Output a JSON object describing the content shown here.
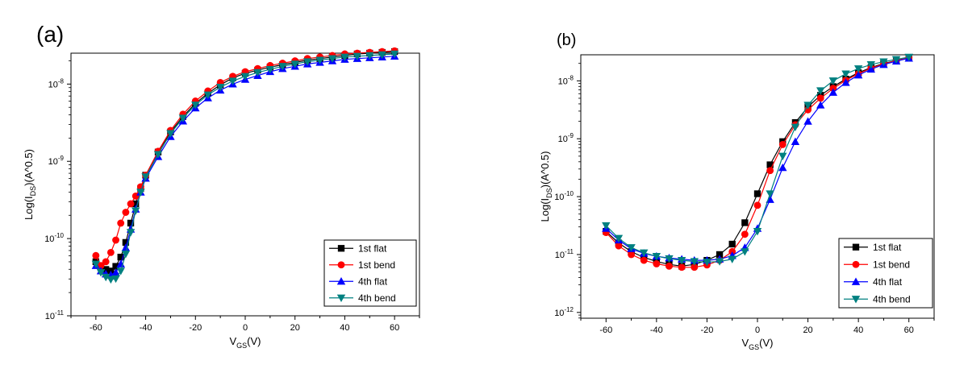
{
  "figure": {
    "background": "#ffffff"
  },
  "chart_data": [
    {
      "type": "scatter",
      "panel_label": "(a)",
      "xlabel": "V",
      "xlabel_sub": "GS",
      "xlabel_unit": "(V)",
      "ylabel_pre": "Log(I",
      "ylabel_sub": "DS",
      "ylabel_post": ")(A^0.5)",
      "xlim": [
        -70,
        70
      ],
      "ylim_log": [
        -11,
        -7.6
      ],
      "xticks": [
        -60,
        -40,
        -20,
        0,
        20,
        40,
        60
      ],
      "xtick_labels": [
        "-60",
        "-40",
        "-20",
        "0",
        "20",
        "40",
        "60"
      ],
      "yticks_exp": [
        -11,
        -10,
        -9,
        -8
      ],
      "ytick_labels": [
        {
          "base": "10",
          "exp": "-11"
        },
        {
          "base": "10",
          "exp": "-10"
        },
        {
          "base": "10",
          "exp": "-9"
        },
        {
          "base": "10",
          "exp": "-8"
        }
      ],
      "legend_position": "bottom-right",
      "series": [
        {
          "name": "1st  flat",
          "color": "#000000",
          "marker": "square",
          "points": [
            [
              -60,
              -10.3
            ],
            [
              -58,
              -10.36
            ],
            [
              -56,
              -10.4
            ],
            [
              -54,
              -10.42
            ],
            [
              -52,
              -10.36
            ],
            [
              -50,
              -10.24
            ],
            [
              -48,
              -10.05
            ],
            [
              -46,
              -9.8
            ],
            [
              -44,
              -9.55
            ],
            [
              -42,
              -9.35
            ],
            [
              -40,
              -9.18
            ],
            [
              -35,
              -8.88
            ],
            [
              -30,
              -8.62
            ],
            [
              -25,
              -8.42
            ],
            [
              -20,
              -8.25
            ],
            [
              -15,
              -8.12
            ],
            [
              -10,
              -8.01
            ],
            [
              -5,
              -7.92
            ],
            [
              0,
              -7.86
            ],
            [
              5,
              -7.82
            ],
            [
              10,
              -7.78
            ],
            [
              15,
              -7.75
            ],
            [
              20,
              -7.72
            ],
            [
              25,
              -7.69
            ],
            [
              30,
              -7.67
            ],
            [
              35,
              -7.65
            ],
            [
              40,
              -7.63
            ],
            [
              45,
              -7.61
            ],
            [
              50,
              -7.6
            ],
            [
              55,
              -7.59
            ],
            [
              60,
              -7.58
            ]
          ]
        },
        {
          "name": "1st bend",
          "color": "#ff0000",
          "marker": "circle",
          "points": [
            [
              -60,
              -10.22
            ],
            [
              -58,
              -10.35
            ],
            [
              -56,
              -10.3
            ],
            [
              -54,
              -10.18
            ],
            [
              -52,
              -10.02
            ],
            [
              -50,
              -9.8
            ],
            [
              -48,
              -9.66
            ],
            [
              -46,
              -9.55
            ],
            [
              -44,
              -9.45
            ],
            [
              -42,
              -9.33
            ],
            [
              -40,
              -9.18
            ],
            [
              -35,
              -8.87
            ],
            [
              -30,
              -8.6
            ],
            [
              -25,
              -8.39
            ],
            [
              -20,
              -8.22
            ],
            [
              -15,
              -8.09
            ],
            [
              -10,
              -7.98
            ],
            [
              -5,
              -7.9
            ],
            [
              0,
              -7.84
            ],
            [
              5,
              -7.8
            ],
            [
              10,
              -7.76
            ],
            [
              15,
              -7.73
            ],
            [
              20,
              -7.7
            ],
            [
              25,
              -7.67
            ],
            [
              30,
              -7.65
            ],
            [
              35,
              -7.63
            ],
            [
              40,
              -7.61
            ],
            [
              45,
              -7.6
            ],
            [
              50,
              -7.59
            ],
            [
              55,
              -7.58
            ],
            [
              60,
              -7.57
            ]
          ]
        },
        {
          "name": "4th  flat",
          "color": "#0000ff",
          "marker": "triangle-up",
          "points": [
            [
              -60,
              -10.35
            ],
            [
              -58,
              -10.42
            ],
            [
              -56,
              -10.46
            ],
            [
              -54,
              -10.47
            ],
            [
              -52,
              -10.44
            ],
            [
              -50,
              -10.33
            ],
            [
              -48,
              -10.12
            ],
            [
              -46,
              -9.88
            ],
            [
              -44,
              -9.62
            ],
            [
              -42,
              -9.4
            ],
            [
              -40,
              -9.22
            ],
            [
              -35,
              -8.94
            ],
            [
              -30,
              -8.68
            ],
            [
              -25,
              -8.48
            ],
            [
              -20,
              -8.31
            ],
            [
              -15,
              -8.18
            ],
            [
              -10,
              -8.08
            ],
            [
              -5,
              -8.0
            ],
            [
              0,
              -7.94
            ],
            [
              5,
              -7.89
            ],
            [
              10,
              -7.84
            ],
            [
              15,
              -7.8
            ],
            [
              20,
              -7.77
            ],
            [
              25,
              -7.74
            ],
            [
              30,
              -7.72
            ],
            [
              35,
              -7.7
            ],
            [
              40,
              -7.68
            ],
            [
              45,
              -7.67
            ],
            [
              50,
              -7.66
            ],
            [
              55,
              -7.65
            ],
            [
              60,
              -7.64
            ]
          ]
        },
        {
          "name": "4th bend",
          "color": "#008080",
          "marker": "triangle-down",
          "points": [
            [
              -60,
              -10.33
            ],
            [
              -58,
              -10.44
            ],
            [
              -56,
              -10.5
            ],
            [
              -54,
              -10.53
            ],
            [
              -52,
              -10.52
            ],
            [
              -50,
              -10.42
            ],
            [
              -48,
              -10.2
            ],
            [
              -46,
              -9.92
            ],
            [
              -44,
              -9.64
            ],
            [
              -42,
              -9.4
            ],
            [
              -40,
              -9.2
            ],
            [
              -35,
              -8.91
            ],
            [
              -30,
              -8.64
            ],
            [
              -25,
              -8.44
            ],
            [
              -20,
              -8.27
            ],
            [
              -15,
              -8.14
            ],
            [
              -10,
              -8.04
            ],
            [
              -5,
              -7.96
            ],
            [
              0,
              -7.9
            ],
            [
              5,
              -7.85
            ],
            [
              10,
              -7.81
            ],
            [
              15,
              -7.77
            ],
            [
              20,
              -7.74
            ],
            [
              25,
              -7.71
            ],
            [
              30,
              -7.69
            ],
            [
              35,
              -7.67
            ],
            [
              40,
              -7.65
            ],
            [
              45,
              -7.64
            ],
            [
              50,
              -7.63
            ],
            [
              55,
              -7.62
            ],
            [
              60,
              -7.61
            ]
          ]
        }
      ]
    },
    {
      "type": "scatter",
      "panel_label": "(b)",
      "xlabel": "V",
      "xlabel_sub": "GS",
      "xlabel_unit": "(V)",
      "ylabel_pre": "Log(I",
      "ylabel_sub": "DS",
      "ylabel_post": ")(A^0.5)",
      "xlim": [
        -70,
        70
      ],
      "ylim_log": [
        -12.1,
        -7.55
      ],
      "xticks": [
        -60,
        -40,
        -20,
        0,
        20,
        40,
        60
      ],
      "xtick_labels": [
        "-60",
        "-40",
        "-20",
        "0",
        "20",
        "40",
        "60"
      ],
      "yticks_exp": [
        -12,
        -11,
        -10,
        -9,
        -8
      ],
      "ytick_labels": [
        {
          "base": "10",
          "exp": "-12"
        },
        {
          "base": "10",
          "exp": "-11"
        },
        {
          "base": "10",
          "exp": "-10"
        },
        {
          "base": "10",
          "exp": "-9"
        },
        {
          "base": "10",
          "exp": "-8"
        }
      ],
      "legend_position": "bottom-right",
      "series": [
        {
          "name": "1st  flat",
          "color": "#000000",
          "marker": "square",
          "points": [
            [
              -60,
              -10.6
            ],
            [
              -55,
              -10.8
            ],
            [
              -50,
              -10.95
            ],
            [
              -45,
              -11.05
            ],
            [
              -40,
              -11.12
            ],
            [
              -35,
              -11.17
            ],
            [
              -30,
              -11.2
            ],
            [
              -25,
              -11.17
            ],
            [
              -20,
              -11.1
            ],
            [
              -15,
              -11.0
            ],
            [
              -10,
              -10.82
            ],
            [
              -5,
              -10.45
            ],
            [
              0,
              -9.95
            ],
            [
              5,
              -9.45
            ],
            [
              10,
              -9.05
            ],
            [
              15,
              -8.72
            ],
            [
              20,
              -8.45
            ],
            [
              25,
              -8.25
            ],
            [
              30,
              -8.1
            ],
            [
              35,
              -7.97
            ],
            [
              40,
              -7.86
            ],
            [
              45,
              -7.77
            ],
            [
              50,
              -7.7
            ],
            [
              55,
              -7.65
            ],
            [
              60,
              -7.6
            ]
          ]
        },
        {
          "name": "1st bend",
          "color": "#ff0000",
          "marker": "circle",
          "points": [
            [
              -60,
              -10.62
            ],
            [
              -55,
              -10.85
            ],
            [
              -50,
              -11.0
            ],
            [
              -45,
              -11.1
            ],
            [
              -40,
              -11.16
            ],
            [
              -35,
              -11.2
            ],
            [
              -30,
              -11.22
            ],
            [
              -25,
              -11.22
            ],
            [
              -20,
              -11.18
            ],
            [
              -15,
              -11.1
            ],
            [
              -10,
              -10.95
            ],
            [
              -5,
              -10.65
            ],
            [
              0,
              -10.15
            ],
            [
              5,
              -9.55
            ],
            [
              10,
              -9.1
            ],
            [
              15,
              -8.76
            ],
            [
              20,
              -8.5
            ],
            [
              25,
              -8.3
            ],
            [
              30,
              -8.13
            ],
            [
              35,
              -7.99
            ],
            [
              40,
              -7.88
            ],
            [
              45,
              -7.78
            ],
            [
              50,
              -7.71
            ],
            [
              55,
              -7.65
            ],
            [
              60,
              -7.6
            ]
          ]
        },
        {
          "name": "4th  flat",
          "color": "#0000ff",
          "marker": "triangle-up",
          "points": [
            [
              -60,
              -10.55
            ],
            [
              -55,
              -10.75
            ],
            [
              -50,
              -10.9
            ],
            [
              -45,
              -10.98
            ],
            [
              -40,
              -11.03
            ],
            [
              -35,
              -11.06
            ],
            [
              -30,
              -11.08
            ],
            [
              -25,
              -11.1
            ],
            [
              -20,
              -11.1
            ],
            [
              -15,
              -11.08
            ],
            [
              -10,
              -11.02
            ],
            [
              -5,
              -10.88
            ],
            [
              0,
              -10.55
            ],
            [
              5,
              -10.05
            ],
            [
              10,
              -9.5
            ],
            [
              15,
              -9.05
            ],
            [
              20,
              -8.7
            ],
            [
              25,
              -8.42
            ],
            [
              30,
              -8.2
            ],
            [
              35,
              -8.03
            ],
            [
              40,
              -7.9
            ],
            [
              45,
              -7.8
            ],
            [
              50,
              -7.72
            ],
            [
              55,
              -7.66
            ],
            [
              60,
              -7.61
            ]
          ]
        },
        {
          "name": "4th bend",
          "color": "#008080",
          "marker": "triangle-down",
          "points": [
            [
              -60,
              -10.5
            ],
            [
              -55,
              -10.72
            ],
            [
              -50,
              -10.88
            ],
            [
              -45,
              -10.97
            ],
            [
              -40,
              -11.03
            ],
            [
              -35,
              -11.07
            ],
            [
              -30,
              -11.1
            ],
            [
              -25,
              -11.12
            ],
            [
              -20,
              -11.13
            ],
            [
              -15,
              -11.12
            ],
            [
              -10,
              -11.08
            ],
            [
              -5,
              -10.95
            ],
            [
              0,
              -10.6
            ],
            [
              5,
              -9.95
            ],
            [
              10,
              -9.3
            ],
            [
              15,
              -8.8
            ],
            [
              20,
              -8.42
            ],
            [
              25,
              -8.17
            ],
            [
              30,
              -8.0
            ],
            [
              35,
              -7.88
            ],
            [
              40,
              -7.79
            ],
            [
              45,
              -7.72
            ],
            [
              50,
              -7.67
            ],
            [
              55,
              -7.63
            ],
            [
              60,
              -7.59
            ]
          ]
        }
      ]
    }
  ]
}
